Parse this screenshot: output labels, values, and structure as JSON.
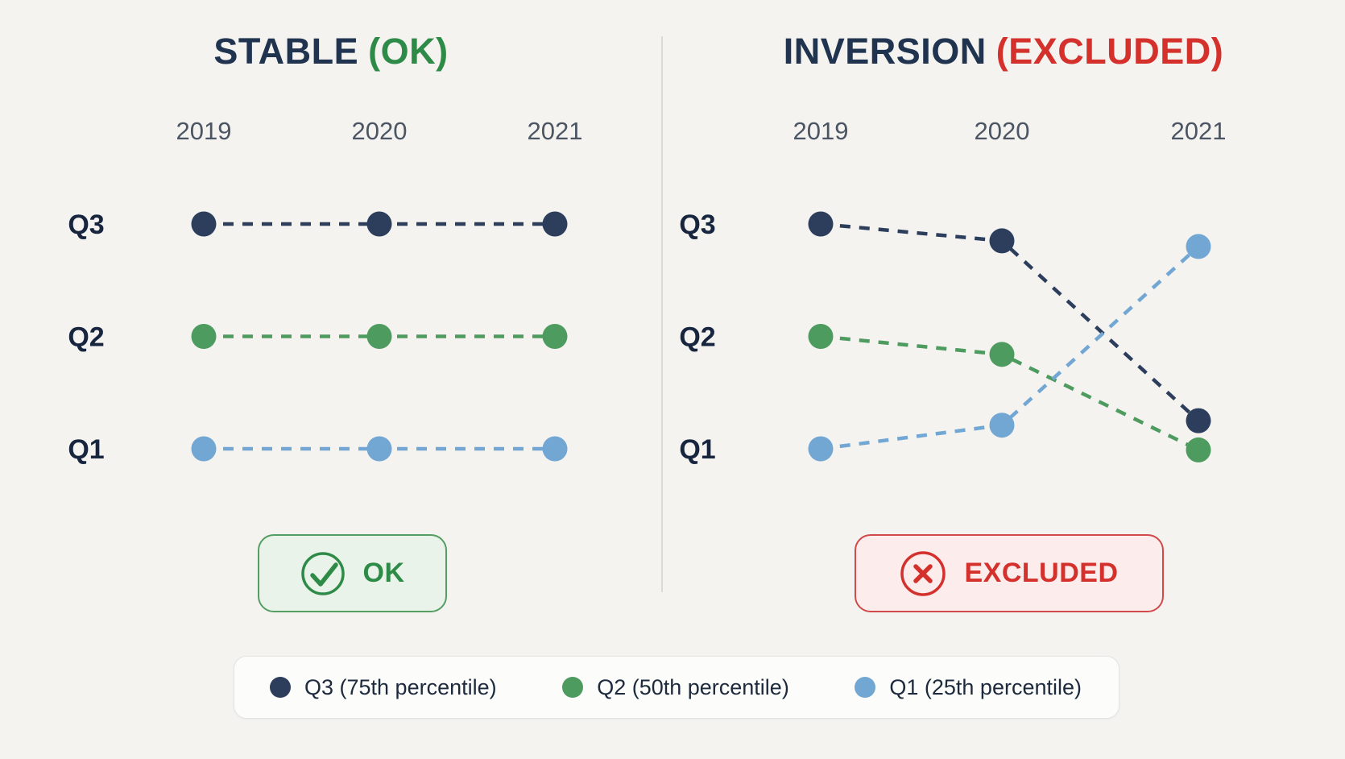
{
  "page": {
    "background_color": "#f4f3f0",
    "divider_color": "#dbdbd9"
  },
  "colors": {
    "navy": "#2c3e5c",
    "green": "#4e9b5f",
    "blue": "#72a7d4",
    "title_navy": "#20334f",
    "ok_green": "#2e8b47",
    "excluded_red": "#d4302c"
  },
  "panels": [
    {
      "title": "STABLE",
      "suffix": "(OK)",
      "badge_label": "OK",
      "badge_icon": "check-circle-icon"
    },
    {
      "title": "INVERSION",
      "suffix": "(EXCLUDED)",
      "badge_label": "EXCLUDED",
      "badge_icon": "x-circle-icon"
    }
  ],
  "chart_data": [
    {
      "type": "scatter",
      "title": "STABLE (OK)",
      "x": [
        "2019",
        "2020",
        "2021"
      ],
      "xlabel": "",
      "ylabel": "",
      "y_axis": {
        "type": "ordinal",
        "levels": [
          {
            "value": 1,
            "label": "Q1"
          },
          {
            "value": 2,
            "label": "Q2"
          },
          {
            "value": 3,
            "label": "Q3"
          }
        ]
      },
      "line_style": "dashed",
      "grid": false,
      "series": [
        {
          "name": "Q3 (75th percentile)",
          "color": "#2c3e5c",
          "values": [
            3,
            3,
            3
          ]
        },
        {
          "name": "Q2 (50th percentile)",
          "color": "#4e9b5f",
          "values": [
            2,
            2,
            2
          ]
        },
        {
          "name": "Q1 (25th percentile)",
          "color": "#72a7d4",
          "values": [
            1,
            1,
            1
          ]
        }
      ],
      "annotation": "OK"
    },
    {
      "type": "scatter",
      "title": "INVERSION (EXCLUDED)",
      "x": [
        "2019",
        "2020",
        "2021"
      ],
      "xlabel": "",
      "ylabel": "",
      "y_axis": {
        "type": "ordinal",
        "levels": [
          {
            "value": 1,
            "label": "Q1"
          },
          {
            "value": 2,
            "label": "Q2"
          },
          {
            "value": 3,
            "label": "Q3"
          }
        ]
      },
      "line_style": "dashed",
      "grid": false,
      "series": [
        {
          "name": "Q3 (75th percentile)",
          "color": "#2c3e5c",
          "values": [
            3,
            2.85,
            1.25
          ]
        },
        {
          "name": "Q2 (50th percentile)",
          "color": "#4e9b5f",
          "values": [
            2,
            1.84,
            0.99
          ]
        },
        {
          "name": "Q1 (25th percentile)",
          "color": "#72a7d4",
          "values": [
            1,
            1.21,
            2.8
          ]
        }
      ],
      "annotation": "EXCLUDED"
    }
  ],
  "legend": {
    "items": [
      {
        "label": "Q3 (75th percentile)",
        "color": "#2c3e5c"
      },
      {
        "label": "Q2 (50th percentile)",
        "color": "#4e9b5f"
      },
      {
        "label": "Q1 (25th percentile)",
        "color": "#72a7d4"
      }
    ]
  }
}
